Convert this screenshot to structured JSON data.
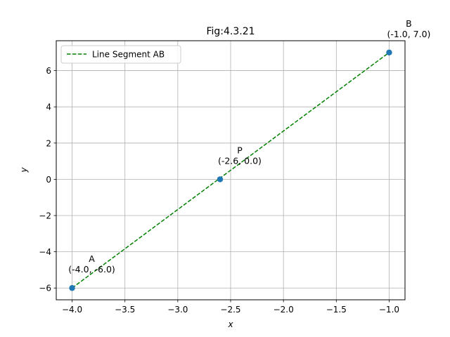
{
  "chart_data": {
    "type": "line",
    "title": "Fig:4.3.21",
    "xlabel": "x",
    "ylabel": "y",
    "xlim": [
      -4.15,
      -0.85
    ],
    "ylim": [
      -6.65,
      7.65
    ],
    "x_ticks": [
      -4.0,
      -3.5,
      -3.0,
      -2.5,
      -2.0,
      -1.5,
      -1.0
    ],
    "x_tick_labels": [
      "−4.0",
      "−3.5",
      "−3.0",
      "−2.5",
      "−2.0",
      "−1.5",
      "−1.0"
    ],
    "y_ticks": [
      -6,
      -4,
      -2,
      0,
      2,
      4,
      6
    ],
    "y_tick_labels": [
      "−6",
      "−4",
      "−2",
      "0",
      "2",
      "4",
      "6"
    ],
    "grid": true,
    "legend_position": "upper-left",
    "series": [
      {
        "name": "Line Segment AB",
        "style": "dashed",
        "color": "#008000",
        "x": [
          -4.0,
          -1.0
        ],
        "y": [
          -6.0,
          7.0
        ]
      }
    ],
    "points": [
      {
        "name": "A",
        "coords": "(-4.0, -6.0)",
        "x": -4.0,
        "y": -6.0
      },
      {
        "name": "P",
        "coords": "(-2.6, 0.0)",
        "x": -2.6,
        "y": 0.0
      },
      {
        "name": "B",
        "coords": "(-1.0, 7.0)",
        "x": -1.0,
        "y": 7.0
      }
    ],
    "point_color": "#1f77b4"
  }
}
